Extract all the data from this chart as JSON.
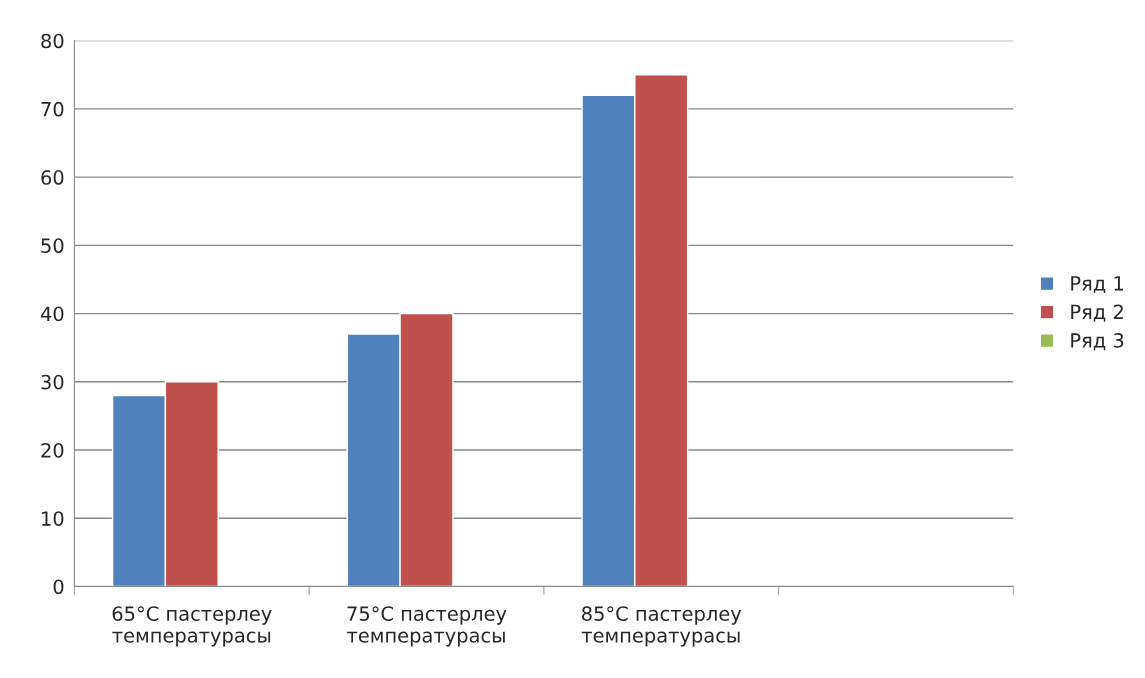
{
  "chart_data": {
    "type": "bar",
    "categories": [
      "65°C пастерлеу\nтемпературасы",
      "75°C пастерлеу\nтемпературасы",
      "85°C пастерлеу\nтемпературасы",
      null
    ],
    "series": [
      {
        "name": "Ряд 1",
        "color": "#4f81bd",
        "values": [
          28,
          37,
          72,
          null
        ]
      },
      {
        "name": "Ряд 2",
        "color": "#c0504d",
        "values": [
          30,
          40,
          75,
          null
        ]
      },
      {
        "name": "Ряд 3",
        "color": "#9bbb59",
        "values": [
          null,
          null,
          null,
          null
        ]
      }
    ],
    "ylim": [
      0,
      80
    ],
    "yticks": [
      0,
      10,
      20,
      30,
      40,
      50,
      60,
      70,
      80
    ],
    "grid": "y",
    "legend": "right"
  }
}
